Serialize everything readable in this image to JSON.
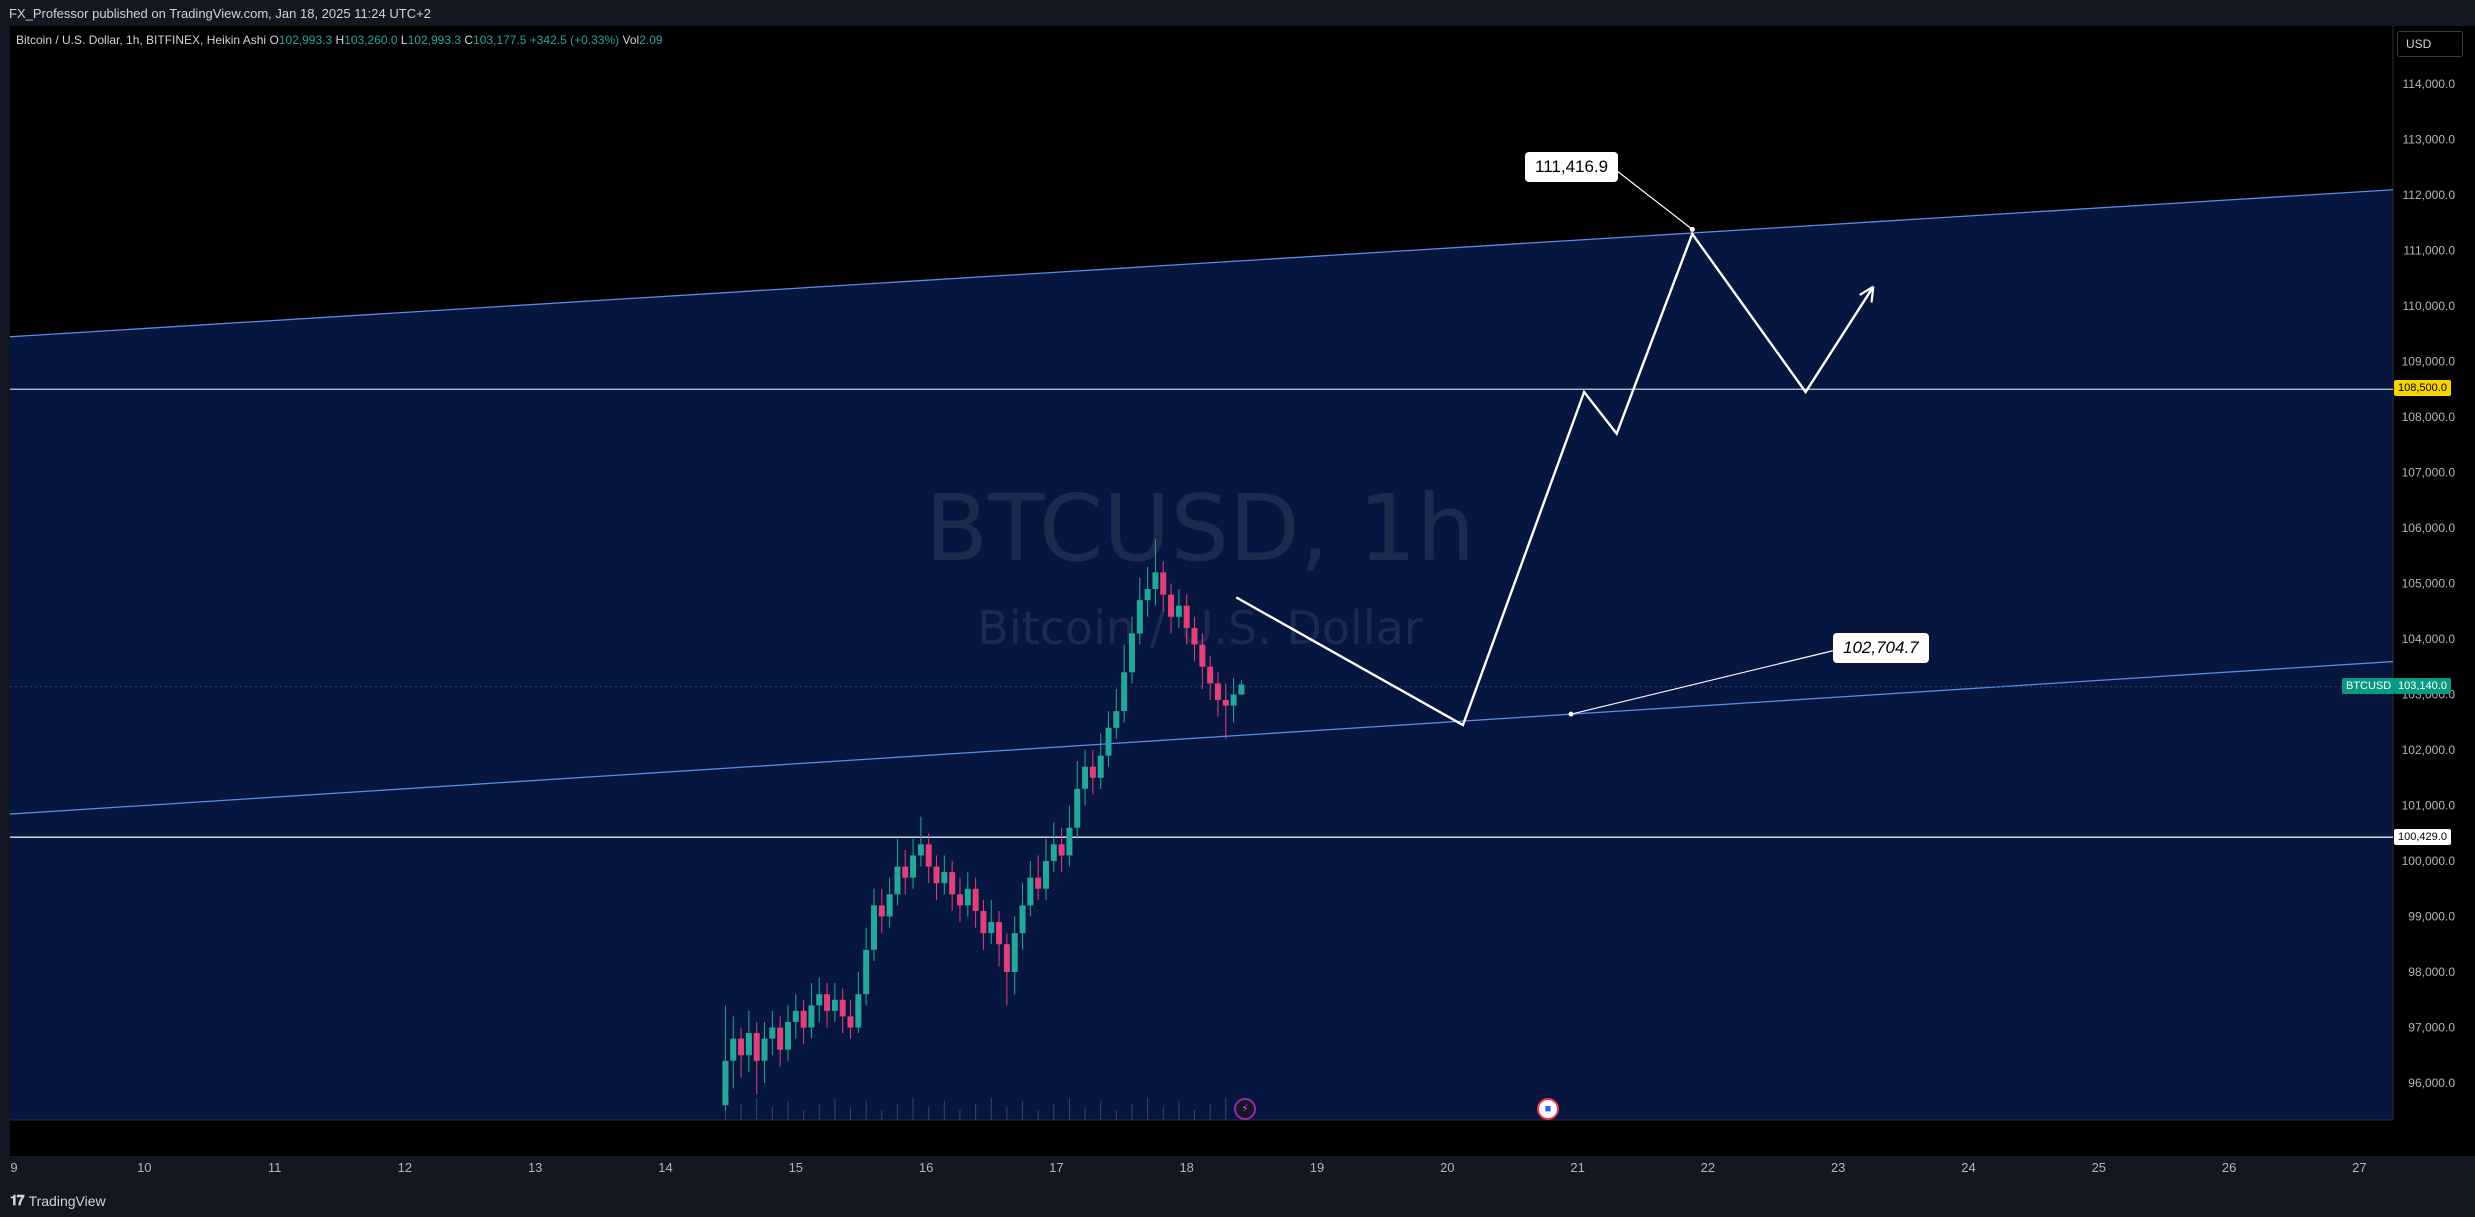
{
  "header": {
    "publish_text": "FX_Professor published on TradingView.com, Jan 18, 2025 11:24 UTC+2"
  },
  "legend": {
    "symbol_info": "Bitcoin / U.S. Dollar, 1h, BITFINEX, Heikin Ashi",
    "open_label": "O",
    "open_value": "102,993.3",
    "high_label": "H",
    "high_value": "103,260.0",
    "low_label": "L",
    "low_value": "102,993.3",
    "close_label": "C",
    "close_value": "103,177.5",
    "change": "+342.5 (+0.33%)",
    "volume_label": "Vol",
    "volume_value": "2.09"
  },
  "currency_button": "USD",
  "watermark": {
    "line1": "BTCUSD, 1h",
    "line2": "Bitcoin / U.S. Dollar"
  },
  "callouts": {
    "top": "111,416.9",
    "mid": "102,704.7"
  },
  "price_tags": {
    "level_high": "108,500.0",
    "level_low": "100,429.0",
    "current": "103,140.0",
    "symbol": "BTCUSD"
  },
  "footer": {
    "brand": "TradingView",
    "logo": "𝟏𝟕"
  },
  "colors": {
    "background": "#000000",
    "channel_fill": "#06163f",
    "up_candle": "#26a69a",
    "down_candle": "#e0417a",
    "channel_line": "#5b8ce6",
    "highlight": "#f5d400"
  },
  "icons": [
    "lightning-icon",
    "flag-icon",
    "tradingview-logo-icon"
  ],
  "chart_data": {
    "type": "candlestick",
    "symbol": "BTCUSD",
    "timeframe": "1h",
    "x_axis": {
      "ticks": [
        "9",
        "10",
        "11",
        "12",
        "13",
        "14",
        "15",
        "16",
        "17",
        "18",
        "19",
        "20",
        "21",
        "22",
        "23",
        "24",
        "25",
        "26",
        "27"
      ]
    },
    "y_axis": {
      "range": [
        95500,
        114500
      ],
      "ticks": [
        "96,000.0",
        "97,000.0",
        "98,000.0",
        "99,000.0",
        "100,000.0",
        "101,000.0",
        "102,000.0",
        "103,000.0",
        "104,000.0",
        "105,000.0",
        "106,000.0",
        "107,000.0",
        "108,000.0",
        "109,000.0",
        "110,000.0",
        "111,000.0",
        "112,000.0",
        "113,000.0",
        "114,000.0"
      ]
    },
    "horizontal_levels": [
      108500,
      100429,
      103140
    ],
    "channel": {
      "upper": [
        {
          "x": 9.0,
          "y": 109450
        },
        {
          "x": 27.3,
          "y": 112100
        }
      ],
      "lower": [
        {
          "x": 9.0,
          "y": 100850
        },
        {
          "x": 27.3,
          "y": 103600
        }
      ]
    },
    "projection_path": [
      {
        "x": 18.38,
        "y": 104750
      },
      {
        "x": 20.12,
        "y": 102450
      },
      {
        "x": 21.05,
        "y": 108450
      },
      {
        "x": 21.3,
        "y": 107700
      },
      {
        "x": 21.88,
        "y": 111300
      },
      {
        "x": 22.75,
        "y": 108450
      },
      {
        "x": 23.27,
        "y": 110350
      }
    ],
    "annotations": [
      {
        "label": "111,416.9",
        "x": 21.88,
        "y": 111416.9
      },
      {
        "label": "102,704.7",
        "x": 20.95,
        "y": 102704.7
      }
    ],
    "candles": [
      {
        "x": 14.46,
        "o": 95600,
        "c": 96400,
        "h": 97400,
        "l": 95500
      },
      {
        "x": 14.52,
        "o": 96400,
        "c": 96800,
        "h": 97200,
        "l": 95900
      },
      {
        "x": 14.58,
        "o": 96800,
        "c": 96500,
        "h": 97000,
        "l": 96100
      },
      {
        "x": 14.64,
        "o": 96500,
        "c": 96900,
        "h": 97300,
        "l": 96200
      },
      {
        "x": 14.7,
        "o": 96900,
        "c": 96400,
        "h": 97100,
        "l": 95800
      },
      {
        "x": 14.76,
        "o": 96400,
        "c": 96800,
        "h": 97100,
        "l": 96000
      },
      {
        "x": 14.82,
        "o": 96800,
        "c": 97000,
        "h": 97300,
        "l": 96500
      },
      {
        "x": 14.88,
        "o": 97000,
        "c": 96600,
        "h": 97200,
        "l": 96300
      },
      {
        "x": 14.94,
        "o": 96600,
        "c": 97100,
        "h": 97400,
        "l": 96400
      },
      {
        "x": 15.0,
        "o": 97100,
        "c": 97300,
        "h": 97600,
        "l": 96800
      },
      {
        "x": 15.06,
        "o": 97300,
        "c": 97000,
        "h": 97500,
        "l": 96700
      },
      {
        "x": 15.12,
        "o": 97000,
        "c": 97400,
        "h": 97800,
        "l": 96800
      },
      {
        "x": 15.18,
        "o": 97400,
        "c": 97600,
        "h": 97900,
        "l": 97100
      },
      {
        "x": 15.24,
        "o": 97600,
        "c": 97300,
        "h": 97800,
        "l": 97000
      },
      {
        "x": 15.3,
        "o": 97300,
        "c": 97500,
        "h": 97800,
        "l": 97100
      },
      {
        "x": 15.36,
        "o": 97500,
        "c": 97200,
        "h": 97700,
        "l": 96900
      },
      {
        "x": 15.42,
        "o": 97200,
        "c": 97000,
        "h": 97500,
        "l": 96800
      },
      {
        "x": 15.48,
        "o": 97000,
        "c": 97600,
        "h": 98000,
        "l": 96900
      },
      {
        "x": 15.54,
        "o": 97600,
        "c": 98400,
        "h": 98800,
        "l": 97400
      },
      {
        "x": 15.6,
        "o": 98400,
        "c": 99200,
        "h": 99500,
        "l": 98200
      },
      {
        "x": 15.66,
        "o": 99200,
        "c": 99000,
        "h": 99500,
        "l": 98700
      },
      {
        "x": 15.72,
        "o": 99000,
        "c": 99400,
        "h": 99700,
        "l": 98800
      },
      {
        "x": 15.78,
        "o": 99400,
        "c": 99900,
        "h": 100400,
        "l": 99200
      },
      {
        "x": 15.84,
        "o": 99900,
        "c": 99700,
        "h": 100200,
        "l": 99400
      },
      {
        "x": 15.9,
        "o": 99700,
        "c": 100100,
        "h": 100400,
        "l": 99500
      },
      {
        "x": 15.96,
        "o": 100100,
        "c": 100300,
        "h": 100800,
        "l": 99900
      },
      {
        "x": 16.02,
        "o": 100300,
        "c": 99900,
        "h": 100500,
        "l": 99600
      },
      {
        "x": 16.08,
        "o": 99900,
        "c": 99600,
        "h": 100100,
        "l": 99300
      },
      {
        "x": 16.14,
        "o": 99600,
        "c": 99800,
        "h": 100100,
        "l": 99400
      },
      {
        "x": 16.2,
        "o": 99800,
        "c": 99400,
        "h": 100000,
        "l": 99100
      },
      {
        "x": 16.26,
        "o": 99400,
        "c": 99200,
        "h": 99700,
        "l": 98900
      },
      {
        "x": 16.32,
        "o": 99200,
        "c": 99500,
        "h": 99800,
        "l": 99000
      },
      {
        "x": 16.38,
        "o": 99500,
        "c": 99100,
        "h": 99700,
        "l": 98800
      },
      {
        "x": 16.44,
        "o": 99100,
        "c": 98700,
        "h": 99300,
        "l": 98400
      },
      {
        "x": 16.5,
        "o": 98700,
        "c": 98900,
        "h": 99300,
        "l": 98500
      },
      {
        "x": 16.56,
        "o": 98900,
        "c": 98500,
        "h": 99100,
        "l": 98100
      },
      {
        "x": 16.62,
        "o": 98500,
        "c": 98000,
        "h": 98700,
        "l": 97400
      },
      {
        "x": 16.68,
        "o": 98000,
        "c": 98700,
        "h": 99000,
        "l": 97600
      },
      {
        "x": 16.74,
        "o": 98700,
        "c": 99200,
        "h": 99600,
        "l": 98400
      },
      {
        "x": 16.8,
        "o": 99200,
        "c": 99700,
        "h": 100000,
        "l": 99000
      },
      {
        "x": 16.86,
        "o": 99700,
        "c": 99500,
        "h": 100100,
        "l": 99300
      },
      {
        "x": 16.92,
        "o": 99500,
        "c": 100000,
        "h": 100400,
        "l": 99300
      },
      {
        "x": 16.98,
        "o": 100000,
        "c": 100300,
        "h": 100700,
        "l": 99800
      },
      {
        "x": 17.04,
        "o": 100300,
        "c": 100100,
        "h": 100600,
        "l": 99800
      },
      {
        "x": 17.1,
        "o": 100100,
        "c": 100600,
        "h": 101000,
        "l": 99900
      },
      {
        "x": 17.16,
        "o": 100600,
        "c": 101300,
        "h": 101800,
        "l": 100400
      },
      {
        "x": 17.22,
        "o": 101300,
        "c": 101700,
        "h": 102000,
        "l": 101000
      },
      {
        "x": 17.28,
        "o": 101700,
        "c": 101500,
        "h": 102000,
        "l": 101200
      },
      {
        "x": 17.34,
        "o": 101500,
        "c": 101900,
        "h": 102300,
        "l": 101300
      },
      {
        "x": 17.4,
        "o": 101900,
        "c": 102400,
        "h": 102700,
        "l": 101700
      },
      {
        "x": 17.46,
        "o": 102400,
        "c": 102700,
        "h": 103100,
        "l": 102200
      },
      {
        "x": 17.52,
        "o": 102700,
        "c": 103400,
        "h": 103900,
        "l": 102500
      },
      {
        "x": 17.58,
        "o": 103400,
        "c": 104100,
        "h": 104400,
        "l": 103200
      },
      {
        "x": 17.64,
        "o": 104100,
        "c": 104700,
        "h": 105100,
        "l": 103900
      },
      {
        "x": 17.7,
        "o": 104700,
        "c": 104900,
        "h": 105300,
        "l": 104400
      },
      {
        "x": 17.76,
        "o": 104900,
        "c": 105200,
        "h": 105800,
        "l": 104600
      },
      {
        "x": 17.82,
        "o": 105200,
        "c": 104800,
        "h": 105400,
        "l": 104500
      },
      {
        "x": 17.88,
        "o": 104800,
        "c": 104400,
        "h": 105000,
        "l": 104100
      },
      {
        "x": 17.94,
        "o": 104400,
        "c": 104600,
        "h": 104900,
        "l": 104200
      },
      {
        "x": 18.0,
        "o": 104600,
        "c": 104200,
        "h": 104800,
        "l": 103900
      },
      {
        "x": 18.06,
        "o": 104200,
        "c": 103900,
        "h": 104400,
        "l": 103600
      },
      {
        "x": 18.12,
        "o": 103900,
        "c": 103500,
        "h": 104100,
        "l": 103100
      },
      {
        "x": 18.18,
        "o": 103500,
        "c": 103200,
        "h": 103700,
        "l": 102900
      },
      {
        "x": 18.24,
        "o": 103200,
        "c": 102900,
        "h": 103400,
        "l": 102600
      },
      {
        "x": 18.3,
        "o": 102900,
        "c": 102800,
        "h": 103200,
        "l": 102200
      },
      {
        "x": 18.36,
        "o": 102800,
        "c": 103000,
        "h": 103300,
        "l": 102500
      },
      {
        "x": 18.42,
        "o": 103000,
        "c": 103180,
        "h": 103260,
        "l": 102990
      }
    ]
  }
}
